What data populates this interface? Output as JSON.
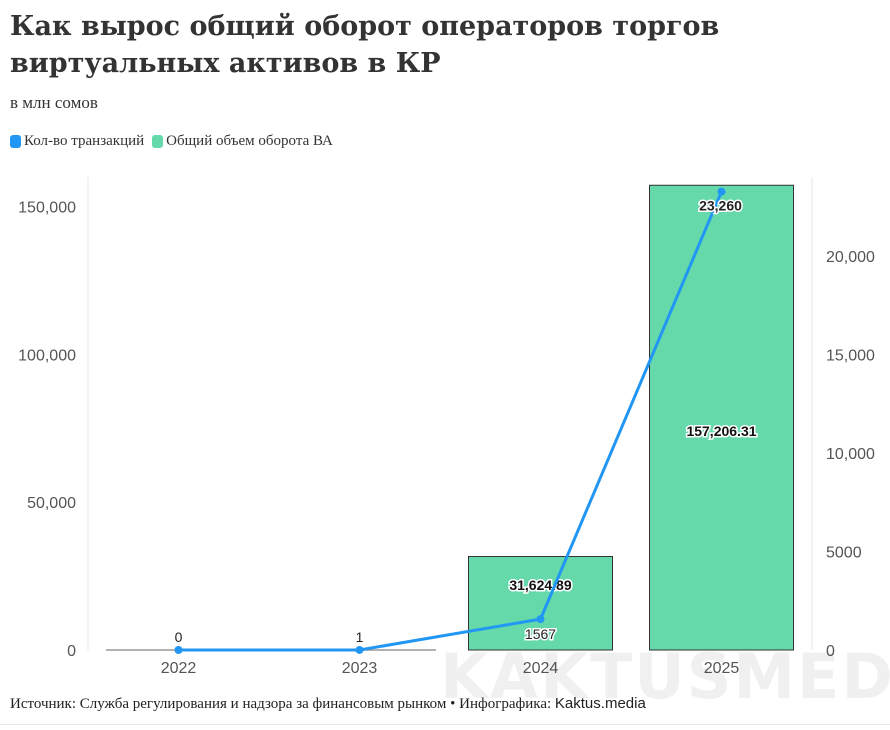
{
  "chart_data": {
    "type": "bar+line",
    "title": "Как вырос общий оборот операторов торгов виртуальных активов в КР",
    "subtitle": "в млн сомов",
    "categories": [
      "2022",
      "2023",
      "2024",
      "2025"
    ],
    "series": [
      {
        "name": "Кол-во транзакций",
        "type": "line",
        "axis": "right",
        "color": "#2196f3",
        "values": [
          0,
          1,
          1567,
          23260
        ],
        "labels": [
          "0",
          "1",
          "1567",
          "23,260"
        ]
      },
      {
        "name": "Общий объем оборота ВА",
        "type": "bar",
        "axis": "left",
        "color": "#66d9ab",
        "values": [
          0,
          0,
          31624.89,
          157206.31
        ],
        "labels": [
          "",
          "",
          "31,624.89",
          "157,206.31"
        ]
      }
    ],
    "left_axis": {
      "ylim": [
        0,
        160000
      ],
      "ticks": [
        0,
        50000,
        100000,
        150000
      ],
      "tick_labels": [
        "0",
        "50,000",
        "100,000",
        "150,000"
      ]
    },
    "right_axis": {
      "ylim": [
        0,
        24000
      ],
      "ticks": [
        0,
        5000,
        10000,
        15000,
        20000
      ],
      "tick_labels": [
        "0",
        "5000",
        "10,000",
        "15,000",
        "20,000"
      ]
    },
    "grid": false,
    "legend_position": "top-left"
  },
  "footer": {
    "source": "Источник: Служба регулирования и надзора за финансовым рынком • Инфографика: ",
    "brand": "Kaktus.media"
  },
  "watermark": "KAKTUSMEDIA"
}
